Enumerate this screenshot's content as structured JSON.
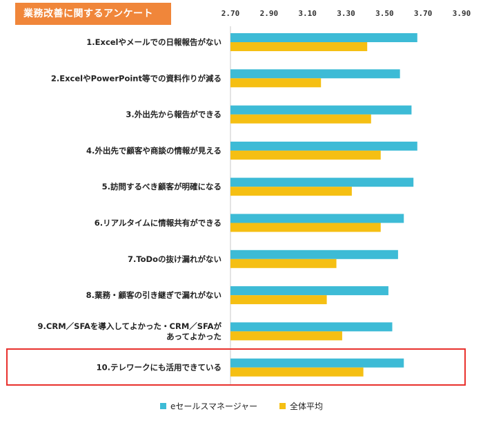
{
  "header": {
    "title": "業務改善に関するアンケート"
  },
  "colors": {
    "series1": "#3dbbd6",
    "series2": "#f5bf13",
    "highlight": "#e8302c",
    "badge": "#f0863a"
  },
  "chart_data": {
    "type": "bar",
    "orientation": "horizontal",
    "xlim": [
      2.7,
      3.9
    ],
    "ticks": [
      "2.70",
      "2.90",
      "3.10",
      "3.30",
      "3.50",
      "3.70",
      "3.90"
    ],
    "tick_values": [
      2.7,
      2.9,
      3.1,
      3.3,
      3.5,
      3.7,
      3.9
    ],
    "tick_position": "top",
    "legend_position": "bottom",
    "categories": [
      [
        "1.Excelやメールでの日報報告がない"
      ],
      [
        "2.ExcelやPowerPoint等での資料作りが減る"
      ],
      [
        "3.外出先から報告ができる"
      ],
      [
        "4.外出先で顧客や商談の情報が見える"
      ],
      [
        "5.訪問するべき顧客が明確になる"
      ],
      [
        "6.リアルタイムに情報共有ができる"
      ],
      [
        "7.ToDoの抜け漏れがない"
      ],
      [
        "8.業務・顧客の引き継ぎで漏れがない"
      ],
      [
        "9.CRM／SFAを導入してよかった・CRM／SFAが",
        "あってよかった"
      ],
      [
        "10.テレワークにも活用できている"
      ]
    ],
    "series": [
      {
        "name": "eセールスマネージャー",
        "values": [
          3.67,
          3.58,
          3.64,
          3.67,
          3.65,
          3.6,
          3.57,
          3.52,
          3.54,
          3.6
        ]
      },
      {
        "name": "全体平均",
        "values": [
          3.41,
          3.17,
          3.43,
          3.48,
          3.33,
          3.48,
          3.25,
          3.2,
          3.28,
          3.39
        ]
      }
    ],
    "highlighted_category_index": 9
  }
}
